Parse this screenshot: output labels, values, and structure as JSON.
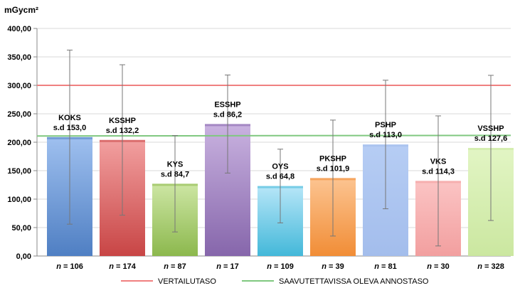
{
  "chart_data": {
    "type": "bar",
    "ylabel": "mGycm²",
    "ylim": [
      0,
      400
    ],
    "yticks": [
      "0,00",
      "50,00",
      "100,00",
      "150,00",
      "200,00",
      "250,00",
      "300,00",
      "350,00",
      "400,00"
    ],
    "grid": true,
    "categories": [
      "KOKS",
      "KSSHP",
      "KYS",
      "ESSHP",
      "OYS",
      "PKSHP",
      "PSHP",
      "VKS",
      "VSSHP"
    ],
    "values": [
      209,
      204,
      127,
      232,
      123,
      137,
      196,
      132,
      190
    ],
    "sd_labels": [
      "s.d 153,0",
      "s.d 132,2",
      "s.d 84,7",
      "s.d 86,2",
      "s.d 64,8",
      "s.d 101,9",
      "s.d 113,0",
      "s.d 114,3",
      "s.d 127,6"
    ],
    "sd": [
      153.0,
      132.2,
      84.7,
      86.2,
      64.8,
      101.9,
      113.0,
      114.3,
      127.6
    ],
    "n_labels": [
      "n = 106",
      "n = 174",
      "n = 87",
      "n = 17",
      "n = 109",
      "n = 39",
      "n = 81",
      "n = 30",
      "n = 328"
    ],
    "bar_colors": [
      [
        "#9fc0ef",
        "#4f7fc3"
      ],
      [
        "#f2a0a0",
        "#c84545"
      ],
      [
        "#cde6a4",
        "#8cb84d"
      ],
      [
        "#c9b2e0",
        "#8666ab"
      ],
      [
        "#b7e6f8",
        "#43b8d9"
      ],
      [
        "#fcc491",
        "#f18d36"
      ],
      [
        "#b6cdf4",
        "#a3bdec"
      ],
      [
        "#fbc4c4",
        "#f29f9f"
      ],
      [
        "#e2f5c4",
        "#cbe7a0"
      ]
    ],
    "reference_lines": [
      {
        "name": "VERTAILUTASO",
        "value": 300,
        "color": "#f08080"
      },
      {
        "name": "SAAVUTETTAVISSA OLEVA ANNOSTASO",
        "value": 211,
        "value_end": 212,
        "color": "#80c880"
      }
    ],
    "legend_position": "bottom"
  }
}
